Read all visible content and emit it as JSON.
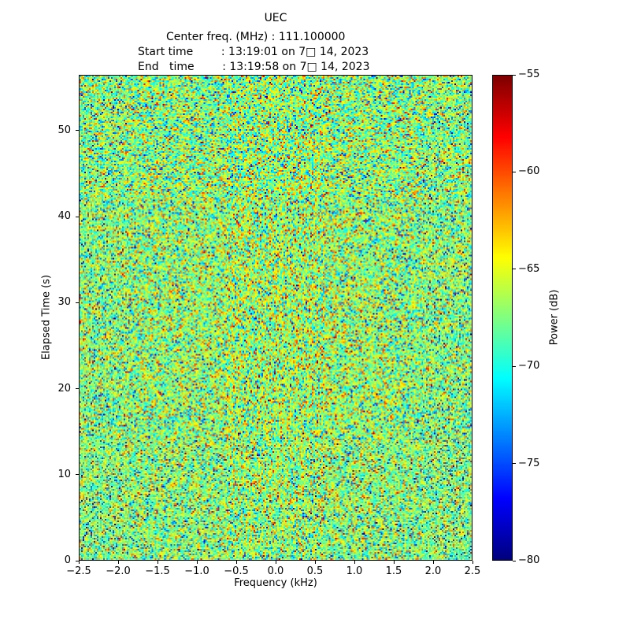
{
  "title": "UEC",
  "header": {
    "line1": "Center freq. (MHz) : 111.100000",
    "line2": "Start time        : 13:19:01 on 7□ 14, 2023",
    "line3": "End   time        : 13:19:58 on 7□ 14, 2023"
  },
  "chart_data": {
    "type": "heatmap",
    "title": "UEC",
    "subtitle_lines": [
      "Center freq. (MHz) : 111.100000",
      "Start time : 13:19:01 on 7□ 14, 2023",
      "End   time : 13:19:58 on 7□ 14, 2023"
    ],
    "xlabel": "Frequency (kHz)",
    "ylabel": "Elapsed Time (s)",
    "xlim": [
      -2.5,
      2.5
    ],
    "ylim": [
      0,
      56.5
    ],
    "xtick_values": [
      -2.5,
      -2.0,
      -1.5,
      -1.0,
      -0.5,
      0.0,
      0.5,
      1.0,
      1.5,
      2.0,
      2.5
    ],
    "xtick_labels": [
      "−2.5",
      "−2.0",
      "−1.5",
      "−1.0",
      "−0.5",
      "0.0",
      "0.5",
      "1.0",
      "1.5",
      "2.0",
      "2.5"
    ],
    "ytick_values": [
      0,
      10,
      20,
      30,
      40,
      50
    ],
    "ytick_labels": [
      "0",
      "10",
      "20",
      "30",
      "40",
      "50"
    ],
    "grid": false,
    "colorbar": {
      "label": "Power (dB)",
      "tick_values": [
        -55,
        -60,
        -65,
        -70,
        -75,
        -80
      ],
      "tick_labels": [
        "−55",
        "−60",
        "−65",
        "−70",
        "−75",
        "−80"
      ],
      "vmin": -80,
      "vmax": -55,
      "colormap": "jet",
      "position": "right"
    },
    "content": {
      "description": "uniform wideband noise floor speckle, no coherent signal visible",
      "mean_db": -67.5,
      "std_db": 3.8,
      "center_bump_db": 1.0,
      "grid_cols": 250,
      "grid_rows": 308,
      "seed": 20230714
    }
  }
}
